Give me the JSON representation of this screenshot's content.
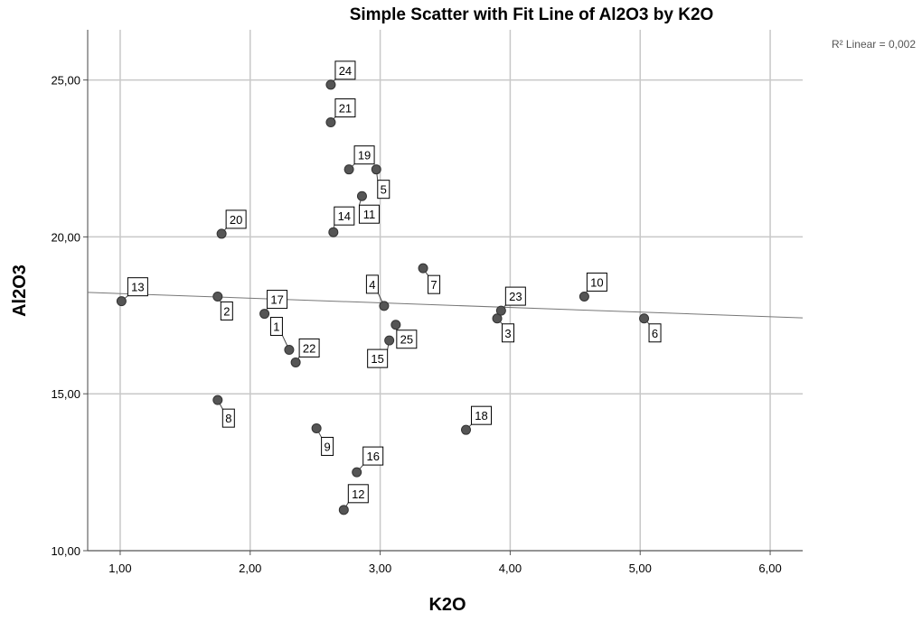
{
  "chart_data": {
    "type": "scatter",
    "title": "Simple Scatter with Fit Line of Al2O3 by K2O",
    "xlabel": "K2O",
    "ylabel": "Al2O3",
    "xlim": [
      0.75,
      6.25
    ],
    "ylim": [
      10,
      26.6
    ],
    "xticks": [
      "1,00",
      "2,00",
      "3,00",
      "4,00",
      "5,00",
      "6,00"
    ],
    "yticks": [
      "10,00",
      "15,00",
      "20,00",
      "25,00"
    ],
    "grid": true,
    "fit_line": {
      "label": "R² Linear = 0,002",
      "x1": 0.75,
      "y1": 18.23,
      "x2": 6.25,
      "y2": 17.42
    },
    "points": [
      {
        "label": "1",
        "x": 2.3,
        "y": 16.4
      },
      {
        "label": "2",
        "x": 1.75,
        "y": 18.1
      },
      {
        "label": "3",
        "x": 3.9,
        "y": 17.4
      },
      {
        "label": "4",
        "x": 3.03,
        "y": 17.8
      },
      {
        "label": "5",
        "x": 2.97,
        "y": 22.15
      },
      {
        "label": "6",
        "x": 5.03,
        "y": 17.4
      },
      {
        "label": "7",
        "x": 3.33,
        "y": 19.0
      },
      {
        "label": "8",
        "x": 1.75,
        "y": 14.8
      },
      {
        "label": "9",
        "x": 2.51,
        "y": 13.9
      },
      {
        "label": "10",
        "x": 4.57,
        "y": 18.1
      },
      {
        "label": "11",
        "x": 2.86,
        "y": 21.3
      },
      {
        "label": "12",
        "x": 2.72,
        "y": 11.3
      },
      {
        "label": "13",
        "x": 1.01,
        "y": 17.95
      },
      {
        "label": "14",
        "x": 2.64,
        "y": 20.15
      },
      {
        "label": "15",
        "x": 3.07,
        "y": 16.7
      },
      {
        "label": "16",
        "x": 2.82,
        "y": 12.5
      },
      {
        "label": "17",
        "x": 2.11,
        "y": 17.55
      },
      {
        "label": "18",
        "x": 3.66,
        "y": 13.85
      },
      {
        "label": "19",
        "x": 2.76,
        "y": 22.15
      },
      {
        "label": "20",
        "x": 1.78,
        "y": 20.1
      },
      {
        "label": "21",
        "x": 2.62,
        "y": 23.65
      },
      {
        "label": "22",
        "x": 2.35,
        "y": 16.0
      },
      {
        "label": "23",
        "x": 3.93,
        "y": 17.65
      },
      {
        "label": "24",
        "x": 2.62,
        "y": 24.85
      },
      {
        "label": "25",
        "x": 3.12,
        "y": 17.2
      }
    ]
  }
}
